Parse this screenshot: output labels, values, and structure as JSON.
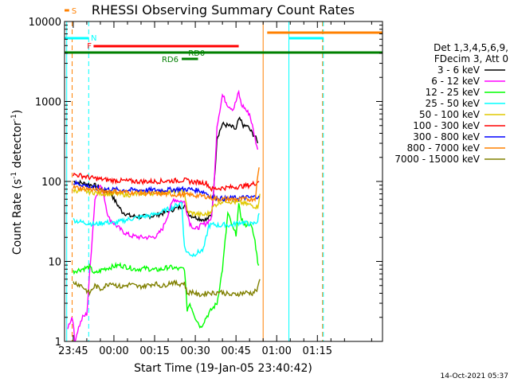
{
  "chart_data": {
    "type": "line",
    "title": "RHESSI Observing Summary Count Rates",
    "xlabel": "Start Time (19-Jan-05 23:40:42)",
    "ylabel_main": "Count Rate (s",
    "ylabel_sup1": "-1",
    "ylabel_mid": " detector",
    "ylabel_sup2": "-1",
    "ylabel_end": ")",
    "yscale": "log",
    "ylim": [
      1,
      10000
    ],
    "xlim_minutes": [
      -18.2,
      99
    ],
    "x_ticks": [
      {
        "label": "23:45",
        "min": -15
      },
      {
        "label": "00:00",
        "min": 0
      },
      {
        "label": "00:15",
        "min": 15
      },
      {
        "label": "00:30",
        "min": 30
      },
      {
        "label": "00:45",
        "min": 45
      },
      {
        "label": "01:00",
        "min": 60
      },
      {
        "label": "01:15",
        "min": 75
      }
    ],
    "y_ticks": [
      {
        "label": "1",
        "v": 1
      },
      {
        "label": "10",
        "v": 10
      },
      {
        "label": "100",
        "v": 100
      },
      {
        "label": "1000",
        "v": 1000
      },
      {
        "label": "10000",
        "v": 10000
      }
    ],
    "legend": {
      "header1": "Det 1,3,4,5,6,9,",
      "header2": "FDecim 3, Att 0",
      "entries": [
        {
          "label": "3 - 6 keV",
          "color": "#000000"
        },
        {
          "label": "6 - 12 keV",
          "color": "#ff00ff"
        },
        {
          "label": "12 - 25 keV",
          "color": "#00ff00"
        },
        {
          "label": "25 - 50 keV",
          "color": "#00ffff"
        },
        {
          "label": "50 - 100 keV",
          "color": "#e0c800"
        },
        {
          "label": "100 - 300 keV",
          "color": "#ff0000"
        },
        {
          "label": "300 - 800 keV",
          "color": "#0000ff"
        },
        {
          "label": "800 - 7000 keV",
          "color": "#ff8000"
        },
        {
          "label": "7000 - 15000 keV",
          "color": "#808000"
        }
      ]
    },
    "flag_bars": [
      {
        "label": "S",
        "color": "#ff8000"
      },
      {
        "label": "N",
        "color": "#00ffff"
      },
      {
        "label": "F",
        "color": "#ff0000"
      },
      {
        "label": "RD0",
        "color": "#008000"
      },
      {
        "label": "RD6",
        "color": "#008000"
      }
    ],
    "series": [
      {
        "name": "3 - 6 keV",
        "color": "#000000",
        "x": [
          -14.9,
          -6.5,
          -5,
          -3,
          -1,
          0,
          3,
          6,
          10,
          14,
          18,
          22,
          26,
          28,
          30,
          32,
          34,
          36,
          37,
          38,
          40,
          42,
          44,
          45,
          46,
          47,
          48,
          49,
          50,
          51,
          52,
          53
        ],
        "y": [
          100,
          88,
          80,
          75,
          72,
          60,
          42,
          37,
          36,
          37,
          40,
          45,
          50,
          38,
          36,
          34,
          33,
          38,
          100,
          350,
          520,
          500,
          470,
          440,
          600,
          560,
          480,
          500,
          450,
          400,
          370,
          300
        ]
      },
      {
        "name": "6 - 12 keV",
        "color": "#ff00ff",
        "x": [
          -17,
          -15.5,
          -15,
          -14.5,
          -13,
          -11.5,
          -10,
          -7,
          -5,
          -4,
          -2,
          0,
          3,
          6,
          10,
          14,
          16,
          18,
          22,
          26,
          28,
          30,
          32,
          34,
          36,
          37,
          38,
          40,
          42,
          44,
          45,
          46,
          47,
          48,
          49,
          50,
          51,
          52,
          53
        ],
        "y": [
          1.5,
          2,
          1.8,
          1,
          1.5,
          2,
          2.2,
          60,
          90,
          75,
          35,
          30,
          24,
          21,
          20,
          20,
          21,
          26,
          60,
          55,
          30,
          25,
          28,
          30,
          35,
          100,
          500,
          1200,
          900,
          800,
          1000,
          1300,
          900,
          850,
          750,
          700,
          500,
          350,
          250
        ]
      },
      {
        "name": "12 - 25 keV",
        "color": "#00ff00",
        "x": [
          -15,
          -12,
          -9,
          -7,
          -4,
          -1,
          2,
          5,
          8,
          12,
          15,
          18,
          20,
          22,
          24,
          26,
          27,
          28,
          30,
          32,
          34,
          36,
          38,
          40,
          42,
          44,
          45,
          46,
          47,
          48,
          50,
          51,
          52,
          53,
          53.5
        ],
        "y": [
          7.5,
          8,
          8.5,
          7,
          8,
          8.5,
          9,
          8.5,
          8,
          8.2,
          7.8,
          8,
          8.5,
          8.3,
          8,
          8.2,
          2.5,
          3,
          2,
          1.5,
          2,
          2.5,
          3,
          8,
          40,
          25,
          22,
          50,
          35,
          28,
          30,
          25,
          18,
          10,
          9
        ]
      },
      {
        "name": "25 - 50 keV",
        "color": "#00ffff",
        "x": [
          -15,
          -12,
          -9,
          -7,
          -5,
          -3,
          0,
          3,
          6,
          10,
          14,
          18,
          22,
          25,
          26,
          27,
          29,
          31,
          33,
          35,
          37,
          39,
          41,
          43,
          45,
          47,
          49,
          51,
          53,
          53.5
        ],
        "y": [
          33,
          31,
          30,
          29,
          30,
          31,
          30,
          32,
          34,
          36,
          38,
          42,
          48,
          55,
          15,
          13,
          12,
          13,
          14,
          28,
          29,
          28,
          29,
          28,
          30,
          31,
          30,
          29,
          32,
          40
        ]
      },
      {
        "name": "50 - 100 keV",
        "color": "#e0c800",
        "x": [
          -15,
          -12,
          -9,
          -6,
          -3,
          0,
          3,
          6,
          9,
          12,
          15,
          18,
          21,
          24,
          26,
          27,
          29,
          31,
          33,
          35,
          37,
          39,
          41,
          43,
          45,
          47,
          49,
          51,
          53,
          53.8
        ],
        "y": [
          78,
          76,
          74,
          72,
          70,
          70,
          69,
          68,
          70,
          71,
          72,
          73,
          74,
          75,
          75,
          42,
          40,
          39,
          38,
          40,
          50,
          55,
          58,
          56,
          55,
          54,
          52,
          50,
          48,
          70
        ]
      },
      {
        "name": "100 - 300 keV",
        "color": "#ff0000",
        "x": [
          -15,
          -12,
          -9,
          -6,
          -3,
          0,
          3,
          6,
          9,
          12,
          15,
          18,
          21,
          24,
          26,
          28,
          30,
          32,
          34,
          36,
          38,
          40,
          42,
          44,
          46,
          48,
          50,
          52,
          53.5
        ],
        "y": [
          122,
          118,
          112,
          108,
          105,
          103,
          102,
          101,
          100,
          100,
          100,
          101,
          102,
          103,
          104,
          100,
          98,
          97,
          96,
          80,
          82,
          83,
          84,
          85,
          86,
          88,
          90,
          95,
          100
        ]
      },
      {
        "name": "300 - 800 keV",
        "color": "#0000ff",
        "x": [
          -15,
          -12,
          -9,
          -6,
          -3,
          0,
          3,
          6,
          9,
          12,
          15,
          18,
          21,
          24,
          26,
          28,
          30,
          32,
          34,
          36,
          38,
          40,
          42,
          44,
          46,
          48,
          50,
          52,
          53.5
        ],
        "y": [
          96,
          92,
          86,
          82,
          80,
          79,
          78,
          78,
          78,
          78,
          78,
          78,
          79,
          80,
          80,
          80,
          78,
          76,
          72,
          63,
          62,
          61,
          61,
          62,
          62,
          63,
          63,
          64,
          66
        ]
      },
      {
        "name": "800 - 7000 keV",
        "color": "#ff8000",
        "x": [
          -15,
          -12,
          -9,
          -6,
          -3,
          0,
          3,
          6,
          9,
          12,
          15,
          18,
          21,
          24,
          26,
          28,
          30,
          32,
          34,
          36,
          38,
          40,
          42,
          44,
          46,
          48,
          50,
          52,
          53.5
        ],
        "y": [
          85,
          82,
          80,
          78,
          76,
          75,
          74,
          73,
          72,
          71,
          70,
          70,
          69,
          68,
          68,
          68,
          67,
          66,
          65,
          62,
          61,
          60,
          60,
          60,
          60,
          60,
          60,
          61,
          150
        ]
      },
      {
        "name": "7000 - 15000 keV",
        "color": "#808000",
        "x": [
          -15,
          -12,
          -9,
          -7,
          -5,
          -3,
          -1,
          1,
          3,
          6,
          9,
          12,
          15,
          18,
          21,
          24,
          26,
          27,
          29,
          31,
          33,
          35,
          37,
          39,
          41,
          43,
          45,
          47,
          49,
          51,
          53,
          53.8
        ],
        "y": [
          5.5,
          5,
          4,
          5,
          4.5,
          5,
          5.5,
          5,
          4.8,
          5.2,
          4.8,
          5,
          5.3,
          4.9,
          5.5,
          5.2,
          5.4,
          4,
          4.2,
          3.8,
          3.9,
          4.1,
          4,
          4.2,
          4,
          3.8,
          3.9,
          4,
          4.1,
          4,
          4.5,
          6
        ]
      }
    ]
  },
  "footer": {
    "date": "14-Oct-2021 05:37"
  }
}
